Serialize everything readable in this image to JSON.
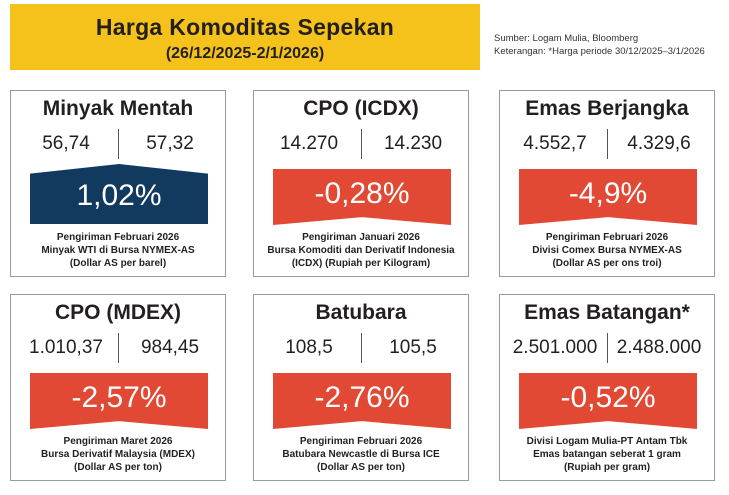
{
  "header": {
    "title": "Harga Komoditas Sepekan",
    "subtitle": "(26/12/2025-2/1/2026)"
  },
  "source": {
    "line1": "Sumber: Logam Mulia, Bloomberg",
    "line2": "Keterangan: *Harga periode 30/12/2025–3/1/2026"
  },
  "colors": {
    "up": "#123a5e",
    "down": "#e24934",
    "header": "#f4c21b"
  },
  "cards": [
    {
      "title": "Minyak Mentah",
      "prev": "56,74",
      "curr": "57,32",
      "change": "1,02%",
      "direction": "up",
      "note1": "Pengiriman Februari 2026",
      "note2": "Minyak WTI di Bursa NYMEX-AS",
      "note3": "(Dollar AS per barel)"
    },
    {
      "title": "CPO (ICDX)",
      "prev": "14.270",
      "curr": "14.230",
      "change": "-0,28%",
      "direction": "down",
      "note1": "Pengiriman Januari 2026",
      "note2": "Bursa Komoditi dan Derivatif Indonesia",
      "note3": "(ICDX) (Rupiah per Kilogram)"
    },
    {
      "title": "Emas Berjangka",
      "prev": "4.552,7",
      "curr": "4.329,6",
      "change": "-4,9%",
      "direction": "down",
      "note1": "Pengiriman Februari 2026",
      "note2": "Divisi Comex Bursa NYMEX-AS",
      "note3": "(Dollar AS per ons troi)"
    },
    {
      "title": "CPO (MDEX)",
      "prev": "1.010,37",
      "curr": "984,45",
      "change": "-2,57%",
      "direction": "down",
      "note1": "Pengiriman Maret 2026",
      "note2": "Bursa Derivatif Malaysia (MDEX)",
      "note3": "(Dollar AS per ton)"
    },
    {
      "title": "Batubara",
      "prev": "108,5",
      "curr": "105,5",
      "change": "-2,76%",
      "direction": "down",
      "note1": "Pengiriman Februari 2026",
      "note2": "Batubara Newcastle di Bursa ICE",
      "note3": "(Dollar AS per ton)"
    },
    {
      "title": "Emas Batangan*",
      "prev": "2.501.000",
      "curr": "2.488.000",
      "change": "-0,52%",
      "direction": "down",
      "note1": "Divisi Logam Mulia-PT Antam Tbk",
      "note2": "Emas batangan seberat 1 gram",
      "note3": "(Rupiah per gram)"
    }
  ]
}
